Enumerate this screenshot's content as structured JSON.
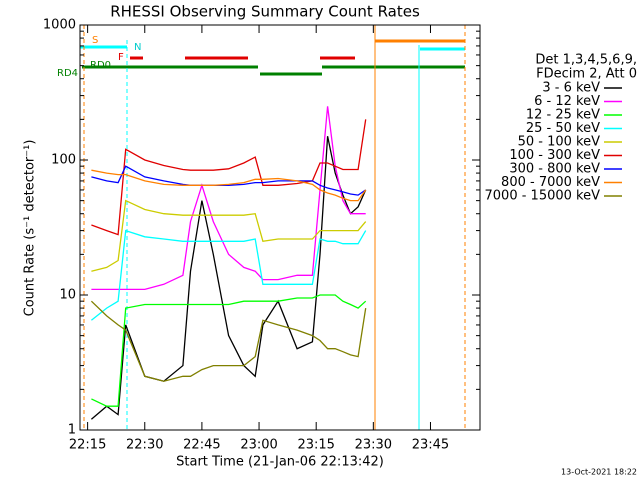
{
  "chart_data": {
    "type": "line",
    "title": "RHESSI Observing Summary Count Rates",
    "xlabel": "Start Time (21-Jan-06 22:13:42)",
    "ylabel": "Count Rate (s⁻¹ detector⁻¹)",
    "legend_header": [
      "Det 1,3,4,5,6,9,",
      "FDecim 2, Att 0"
    ],
    "footer": "13-Oct-2021 18:22",
    "flags": [
      "S",
      "N",
      "F",
      "RD0",
      "RD4"
    ],
    "log_y": true,
    "legend": "right",
    "xlim": [
      13,
      118
    ],
    "xticks": [
      {
        "value": 15,
        "label": "22:15"
      },
      {
        "value": 30,
        "label": "22:30"
      },
      {
        "value": 45,
        "label": "22:45"
      },
      {
        "value": 60,
        "label": "23:00"
      },
      {
        "value": 75,
        "label": "23:15"
      },
      {
        "value": 90,
        "label": "23:30"
      },
      {
        "value": 105,
        "label": "23:45"
      }
    ],
    "ylim": [
      1,
      1000
    ],
    "yticks": [
      1,
      10,
      100,
      1000
    ],
    "x": [
      16,
      20,
      23,
      25,
      30,
      35,
      40,
      42,
      45,
      48,
      52,
      56,
      59,
      61,
      65,
      70,
      74,
      76,
      78,
      80,
      82,
      84,
      86,
      88
    ],
    "series": [
      {
        "name": "3 - 6 keV",
        "color": "#000000",
        "values": [
          1.2,
          1.5,
          1.3,
          6,
          2.5,
          2.3,
          3,
          15,
          50,
          20,
          5,
          3,
          2.5,
          6,
          9,
          4,
          4.5,
          20,
          150,
          80,
          55,
          40,
          45,
          60
        ]
      },
      {
        "name": "6 - 12 keV",
        "color": "#ff00ff",
        "values": [
          11,
          11,
          11,
          11,
          11,
          12,
          14,
          35,
          65,
          35,
          20,
          16,
          15,
          13,
          13,
          14,
          14,
          60,
          250,
          90,
          50,
          40,
          40,
          40
        ]
      },
      {
        "name": "12 - 25 keV",
        "color": "#00ff00",
        "values": [
          1.7,
          1.5,
          1.5,
          8,
          8.5,
          8.5,
          8.5,
          8.5,
          8.5,
          8.5,
          8.5,
          9,
          9,
          9,
          9,
          9.5,
          9.5,
          10,
          10,
          10,
          9,
          8.5,
          8,
          9
        ]
      },
      {
        "name": "25 - 50 keV",
        "color": "#00ffff",
        "values": [
          6.5,
          8,
          9,
          30,
          27,
          26,
          25,
          25,
          25,
          25,
          25,
          25,
          26,
          12,
          12,
          12,
          12,
          26,
          25,
          25,
          24,
          24,
          24,
          30
        ]
      },
      {
        "name": "50 - 100 keV",
        "color": "#cccc00",
        "values": [
          15,
          16,
          18,
          50,
          43,
          40,
          39,
          39,
          39,
          39,
          39,
          39,
          40,
          25,
          26,
          26,
          26,
          30,
          30,
          30,
          30,
          30,
          30,
          35
        ]
      },
      {
        "name": "100 - 300 keV",
        "color": "#e00000",
        "values": [
          33,
          30,
          28,
          120,
          100,
          91,
          85,
          84,
          84,
          84,
          86,
          95,
          105,
          65,
          65,
          67,
          70,
          95,
          95,
          90,
          85,
          85,
          85,
          200
        ]
      },
      {
        "name": "300 - 800 keV",
        "color": "#0000ff",
        "values": [
          75,
          70,
          68,
          90,
          75,
          70,
          66,
          65,
          65,
          65,
          65,
          66,
          68,
          68,
          70,
          70,
          70,
          65,
          62,
          60,
          58,
          56,
          55,
          60
        ]
      },
      {
        "name": "800 - 7000 keV",
        "color": "#ff8000",
        "values": [
          84,
          80,
          78,
          78,
          70,
          66,
          65,
          65,
          65,
          65,
          66,
          68,
          72,
          72,
          73,
          70,
          66,
          60,
          57,
          55,
          52,
          50,
          50,
          60
        ]
      },
      {
        "name": "7000 - 15000 keV",
        "color": "#808000",
        "values": [
          9,
          7,
          6,
          5.5,
          2.5,
          2.3,
          2.5,
          2.5,
          2.8,
          3,
          3,
          3,
          3.5,
          6.5,
          6,
          5.5,
          5,
          4.6,
          4,
          4,
          3.8,
          3.6,
          3.5,
          8
        ]
      }
    ]
  }
}
